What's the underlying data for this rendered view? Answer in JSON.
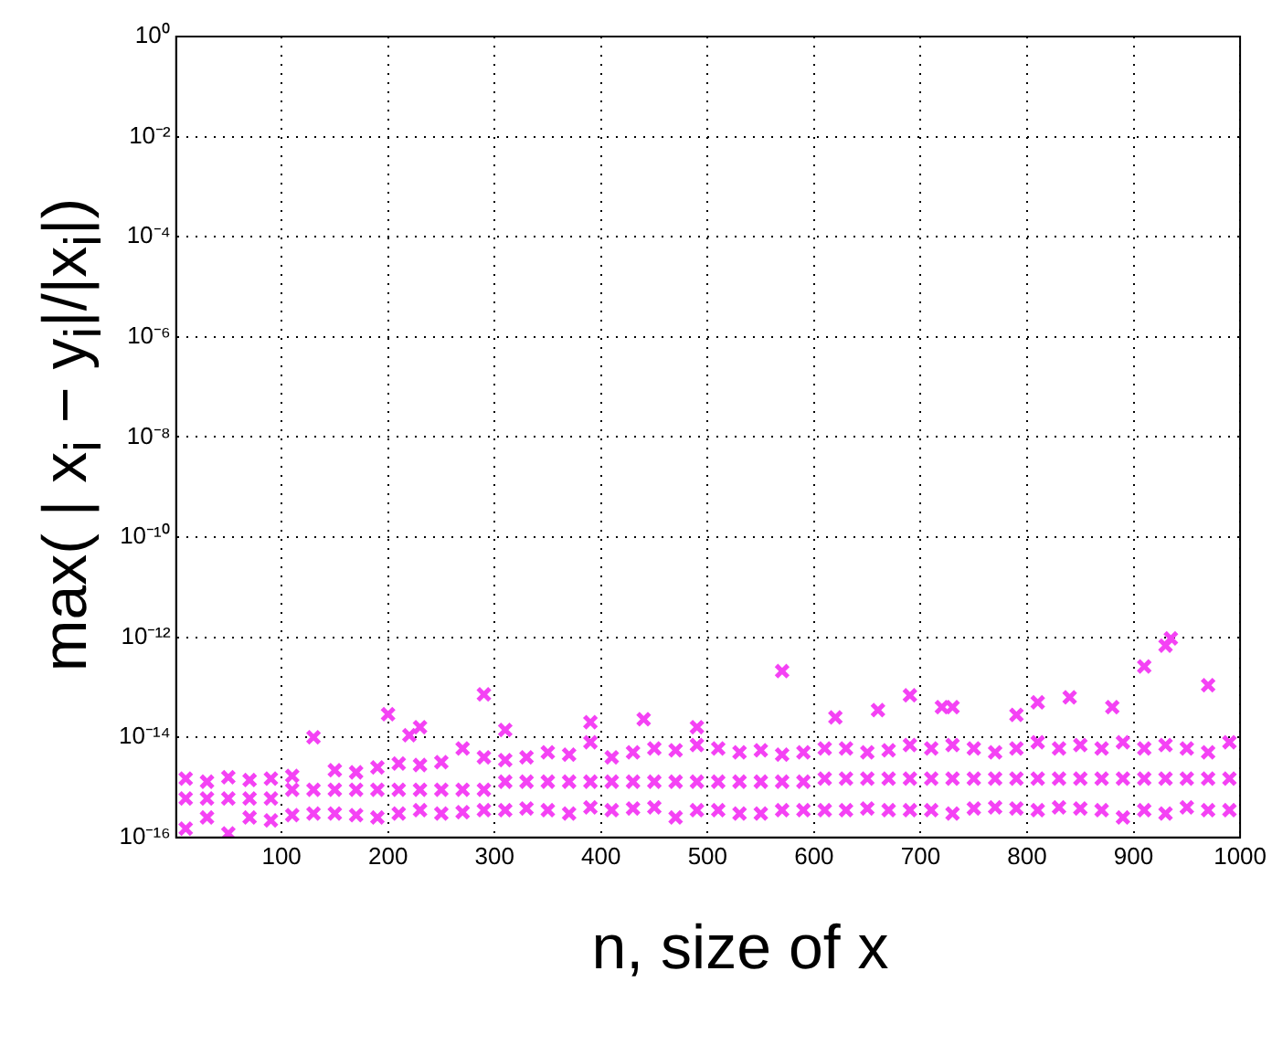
{
  "chart_data": {
    "type": "scatter",
    "xlabel": "n, size of x",
    "ylabel": "max( | x$_{i}$ − y$_{i}$|/|x$_{i}$|)",
    "log": "y",
    "grid": true,
    "marker": "cross",
    "legend": false,
    "xlim": [
      1,
      1000
    ],
    "xticks": [
      100,
      200,
      300,
      400,
      500,
      600,
      700,
      800,
      900,
      1000
    ],
    "ylim": [
      1e-16,
      1
    ],
    "yticks": [
      {
        "value": 1,
        "label": "10⁰"
      },
      {
        "value": 0.01,
        "label": "10⁻²"
      },
      {
        "value": 0.0001,
        "label": "10⁻⁴"
      },
      {
        "value": 1e-06,
        "label": "10⁻⁶"
      },
      {
        "value": 1e-08,
        "label": "10⁻⁸"
      },
      {
        "value": 1e-10,
        "label": "10⁻¹⁰"
      },
      {
        "value": 1e-12,
        "label": "10⁻¹²"
      },
      {
        "value": 1e-14,
        "label": "10⁻¹⁴"
      },
      {
        "value": 1e-16,
        "label": "10⁻¹⁶"
      }
    ],
    "series": [
      {
        "color": "#f442f4",
        "x": [
          10,
          10,
          10,
          30,
          30,
          30,
          50,
          50,
          50,
          70,
          70,
          70,
          90,
          90,
          90,
          110,
          110,
          110,
          130,
          130,
          130,
          150,
          150,
          150,
          170,
          170,
          170,
          190,
          190,
          190,
          210,
          210,
          210,
          230,
          230,
          230,
          250,
          250,
          250,
          270,
          270,
          270,
          290,
          290,
          290,
          310,
          310,
          310,
          330,
          330,
          330,
          350,
          350,
          350,
          370,
          370,
          370,
          390,
          390,
          390,
          410,
          410,
          410,
          430,
          430,
          430,
          450,
          450,
          450,
          470,
          470,
          470,
          490,
          490,
          490,
          510,
          510,
          510,
          530,
          530,
          530,
          550,
          550,
          550,
          570,
          570,
          570,
          590,
          590,
          590,
          610,
          610,
          610,
          630,
          630,
          630,
          650,
          650,
          650,
          670,
          670,
          670,
          690,
          690,
          690,
          710,
          710,
          710,
          730,
          730,
          730,
          750,
          750,
          750,
          770,
          770,
          770,
          790,
          790,
          790,
          810,
          810,
          810,
          830,
          830,
          830,
          850,
          850,
          850,
          870,
          870,
          870,
          890,
          890,
          890,
          910,
          910,
          910,
          930,
          930,
          930,
          950,
          950,
          950,
          970,
          970,
          970,
          990,
          990,
          990,
          200,
          220,
          230,
          290,
          310,
          390,
          440,
          490,
          570,
          620,
          660,
          690,
          720,
          730,
          790,
          810,
          840,
          880,
          910,
          930,
          935,
          970
        ],
        "values": [
          1.5e-15,
          1.5e-16,
          6e-16,
          1.3e-15,
          2.5e-16,
          6e-16,
          1.6e-15,
          1.2e-16,
          6e-16,
          1.4e-15,
          2.5e-16,
          6e-16,
          1.5e-15,
          2.2e-16,
          6e-16,
          1.7e-15,
          2.8e-16,
          9e-16,
          1e-14,
          3e-16,
          9e-16,
          2.2e-15,
          3e-16,
          9e-16,
          2e-15,
          2.8e-16,
          9e-16,
          2.5e-15,
          2.5e-16,
          9e-16,
          3e-15,
          3e-16,
          9e-16,
          2.8e-15,
          3.5e-16,
          9e-16,
          3.2e-15,
          3e-16,
          9e-16,
          6e-15,
          3.2e-16,
          9e-16,
          4e-15,
          3.5e-16,
          9e-16,
          3.5e-15,
          3.5e-16,
          1.3e-15,
          4e-15,
          3.8e-16,
          1.3e-15,
          5e-15,
          3.5e-16,
          1.3e-15,
          4.5e-15,
          3e-16,
          1.3e-15,
          8e-15,
          4e-16,
          1.3e-15,
          4e-15,
          3.5e-16,
          1.3e-15,
          5e-15,
          3.8e-16,
          1.3e-15,
          6e-15,
          4e-16,
          1.3e-15,
          5.5e-15,
          2.5e-16,
          1.3e-15,
          7e-15,
          3.5e-16,
          1.3e-15,
          6e-15,
          3.5e-16,
          1.3e-15,
          5e-15,
          3e-16,
          1.3e-15,
          5.5e-15,
          3e-16,
          1.3e-15,
          4.5e-15,
          3.5e-16,
          1.3e-15,
          5e-15,
          3.5e-16,
          1.3e-15,
          6e-15,
          3.5e-16,
          1.5e-15,
          6e-15,
          3.5e-16,
          1.5e-15,
          5e-15,
          3.8e-16,
          1.5e-15,
          5.5e-15,
          3.5e-16,
          1.5e-15,
          7e-15,
          3.5e-16,
          1.5e-15,
          6e-15,
          3.5e-16,
          1.5e-15,
          7e-15,
          3e-16,
          1.5e-15,
          6e-15,
          3.8e-16,
          1.5e-15,
          5e-15,
          4e-16,
          1.5e-15,
          6e-15,
          3.8e-16,
          1.5e-15,
          8e-15,
          3.5e-16,
          1.5e-15,
          6e-15,
          4e-16,
          1.5e-15,
          7e-15,
          3.8e-16,
          1.5e-15,
          6e-15,
          3.5e-16,
          1.5e-15,
          8e-15,
          2.5e-16,
          1.5e-15,
          6e-15,
          3.5e-16,
          1.5e-15,
          7e-15,
          3e-16,
          1.5e-15,
          6e-15,
          4e-16,
          1.5e-15,
          5e-15,
          3.5e-16,
          1.5e-15,
          8e-15,
          3.5e-16,
          1.5e-15,
          2.9e-14,
          1.1e-14,
          1.6e-14,
          7.2e-14,
          1.4e-14,
          2e-14,
          2.3e-14,
          1.6e-14,
          2.1e-13,
          2.5e-14,
          3.5e-14,
          6.9e-14,
          4e-14,
          4e-14,
          2.8e-14,
          5e-14,
          6.3e-14,
          4e-14,
          2.6e-13,
          6.8e-13,
          9.5e-13,
          1.1e-13
        ]
      }
    ]
  }
}
